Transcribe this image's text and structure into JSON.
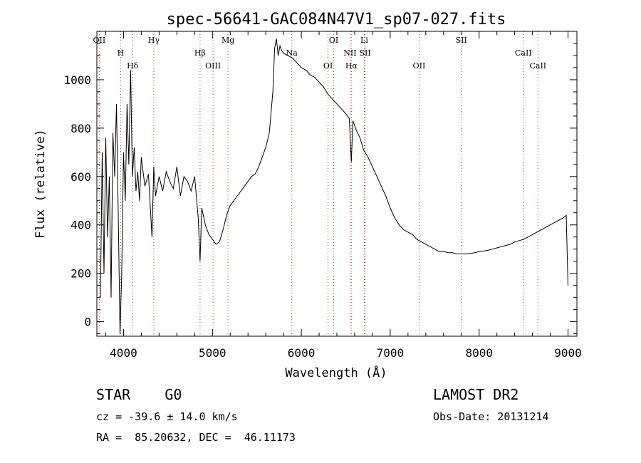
{
  "chart_data": {
    "type": "line",
    "title": "spec-56641-GAC084N47V1_sp07-027.fits",
    "xlabel": "Wavelength (Å)",
    "ylabel": "Flux (relative)",
    "xlim": [
      3700,
      9100
    ],
    "ylim": [
      -60,
      1200
    ],
    "xticks": [
      4000,
      5000,
      6000,
      7000,
      8000,
      9000
    ],
    "yticks": [
      0,
      200,
      400,
      600,
      800,
      1000
    ],
    "xtick_labels": [
      "4000",
      "5000",
      "6000",
      "7000",
      "8000",
      "9000"
    ],
    "ytick_labels": [
      "0",
      "200",
      "400",
      "600",
      "800",
      "1000"
    ],
    "grid": false,
    "line_color": "#000000",
    "marker_line_color": "#e03030",
    "series": [
      {
        "name": "flux",
        "x": [
          3740,
          3760,
          3780,
          3800,
          3820,
          3840,
          3860,
          3880,
          3900,
          3920,
          3940,
          3960,
          3980,
          4000,
          4020,
          4040,
          4060,
          4080,
          4100,
          4120,
          4140,
          4160,
          4180,
          4200,
          4240,
          4280,
          4320,
          4340,
          4360,
          4400,
          4440,
          4480,
          4520,
          4560,
          4600,
          4640,
          4680,
          4720,
          4760,
          4800,
          4840,
          4861,
          4880,
          4920,
          4960,
          5000,
          5040,
          5080,
          5120,
          5160,
          5200,
          5240,
          5280,
          5320,
          5360,
          5400,
          5440,
          5480,
          5520,
          5560,
          5600,
          5640,
          5680,
          5700,
          5720,
          5740,
          5760,
          5780,
          5800,
          5850,
          5900,
          5950,
          6000,
          6050,
          6100,
          6150,
          6200,
          6250,
          6300,
          6350,
          6400,
          6450,
          6500,
          6540,
          6563,
          6580,
          6620,
          6660,
          6700,
          6750,
          6800,
          6850,
          6900,
          6950,
          7000,
          7050,
          7100,
          7150,
          7200,
          7250,
          7300,
          7350,
          7400,
          7450,
          7500,
          7550,
          7600,
          7650,
          7700,
          7750,
          7800,
          7850,
          7900,
          7950,
          8000,
          8050,
          8100,
          8150,
          8200,
          8250,
          8300,
          8350,
          8400,
          8450,
          8500,
          8550,
          8600,
          8650,
          8700,
          8750,
          8800,
          8850,
          8900,
          8950,
          8980,
          9000
        ],
        "y": [
          100,
          700,
          200,
          760,
          350,
          600,
          100,
          780,
          600,
          900,
          450,
          -50,
          200,
          700,
          500,
          900,
          650,
          1040,
          600,
          720,
          540,
          620,
          500,
          680,
          560,
          610,
          350,
          640,
          520,
          600,
          540,
          620,
          580,
          550,
          640,
          520,
          600,
          580,
          540,
          600,
          430,
          250,
          470,
          400,
          360,
          340,
          320,
          330,
          380,
          440,
          480,
          500,
          520,
          540,
          560,
          580,
          600,
          610,
          640,
          680,
          720,
          780,
          950,
          1130,
          1170,
          1100,
          1140,
          1120,
          1110,
          1100,
          1090,
          1070,
          1050,
          1040,
          1020,
          1010,
          990,
          970,
          940,
          920,
          900,
          880,
          860,
          840,
          660,
          830,
          790,
          760,
          710,
          680,
          640,
          600,
          560,
          520,
          470,
          430,
          400,
          380,
          370,
          360,
          340,
          330,
          320,
          310,
          300,
          290,
          290,
          285,
          285,
          280,
          280,
          280,
          282,
          285,
          290,
          292,
          295,
          300,
          305,
          310,
          315,
          320,
          330,
          335,
          340,
          350,
          360,
          370,
          380,
          390,
          400,
          410,
          420,
          430,
          440,
          150
        ]
      }
    ],
    "line_markers": [
      {
        "label": "OII",
        "x": 3727
      },
      {
        "label": "H",
        "x": 3968
      },
      {
        "label": "Hδ",
        "x": 4102
      },
      {
        "label": "Hγ",
        "x": 4340
      },
      {
        "label": "Hβ",
        "x": 4861
      },
      {
        "label": "OIII",
        "x": 5007
      },
      {
        "label": "Mg",
        "x": 5175
      },
      {
        "label": "Na",
        "x": 5893
      },
      {
        "label": "OI",
        "x": 6300
      },
      {
        "label": "OI",
        "x": 6364
      },
      {
        "label": "NII",
        "x": 6548
      },
      {
        "label": "Hα",
        "x": 6563
      },
      {
        "label": "Li",
        "x": 6708
      },
      {
        "label": "SII",
        "x": 6717
      },
      {
        "label": "OII",
        "x": 7325
      },
      {
        "label": "SII",
        "x": 7800
      },
      {
        "label": "CaII",
        "x": 8498
      },
      {
        "label": "CaII",
        "x": 8662
      }
    ]
  },
  "info": {
    "classification": "STAR    G0",
    "survey": "LAMOST DR2",
    "redshift": "cz = -39.6 ± 14.0 km/s",
    "obs_date": "Obs-Date: 20131214",
    "coordinates": "RA =  85.20632, DEC =  46.11173"
  }
}
